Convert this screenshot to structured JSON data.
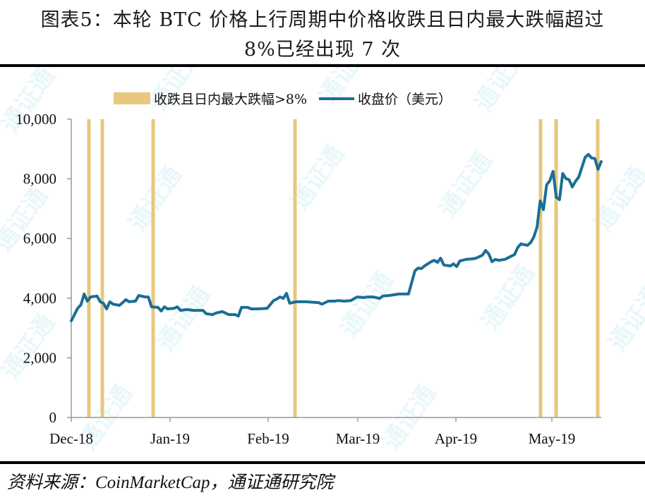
{
  "header": {
    "title_line1": "图表5：本轮 BTC 价格上行周期中价格收跌且日内最大跌幅超过",
    "title_line2": "8%已经出现 7 次"
  },
  "footer": {
    "source": "资料来源：CoinMarketCap，通证通研究院"
  },
  "watermark": {
    "text": "通证通",
    "color": "#d8f1f7"
  },
  "colors": {
    "line": "#1a6e96",
    "bar": "#e8c77e",
    "axis": "#999999"
  },
  "chart_data": {
    "type": "line",
    "title": "本轮 BTC 价格上行周期中价格收跌且日内最大跌幅超过8%已经出现 7 次",
    "xlabel": "",
    "ylabel": "",
    "ylim": [
      0,
      10000
    ],
    "y_ticks": [
      "0",
      "2,000",
      "4,000",
      "6,000",
      "8,000",
      "10,000"
    ],
    "y_tick_values": [
      0,
      2000,
      4000,
      6000,
      8000,
      10000
    ],
    "x_ticks": [
      "Dec-18",
      "Jan-19",
      "Feb-19",
      "Mar-19",
      "Apr-19",
      "May-19"
    ],
    "x_range": [
      "2018-12-15",
      "2019-05-16"
    ],
    "grid": false,
    "legend_position": "top",
    "legend": [
      {
        "label": "收跌且日内最大跌幅>8%",
        "type": "bar",
        "color": "#e8c77e"
      },
      {
        "label": "收盘价（美元）",
        "type": "line",
        "color": "#1a6e96"
      }
    ],
    "series": [
      {
        "name": "收盘价（美元）",
        "points": [
          [
            "2018-12-15",
            3240
          ],
          [
            "2018-12-17",
            3660
          ],
          [
            "2018-12-18",
            3780
          ],
          [
            "2018-12-19",
            4140
          ],
          [
            "2018-12-20",
            3900
          ],
          [
            "2018-12-21",
            4040
          ],
          [
            "2018-12-23",
            4070
          ],
          [
            "2018-12-24",
            3880
          ],
          [
            "2018-12-25",
            3830
          ],
          [
            "2018-12-26",
            3640
          ],
          [
            "2018-12-27",
            3880
          ],
          [
            "2018-12-28",
            3800
          ],
          [
            "2018-12-30",
            3760
          ],
          [
            "2018-12-31",
            3850
          ],
          [
            "2019-01-01",
            3950
          ],
          [
            "2019-01-02",
            3880
          ],
          [
            "2019-01-04",
            3900
          ],
          [
            "2019-01-05",
            4090
          ],
          [
            "2019-01-07",
            4040
          ],
          [
            "2019-01-08",
            4040
          ],
          [
            "2019-01-09",
            3710
          ],
          [
            "2019-01-11",
            3690
          ],
          [
            "2019-01-12",
            3570
          ],
          [
            "2019-01-13",
            3710
          ],
          [
            "2019-01-14",
            3640
          ],
          [
            "2019-01-16",
            3660
          ],
          [
            "2019-01-17",
            3710
          ],
          [
            "2019-01-18",
            3590
          ],
          [
            "2019-01-20",
            3620
          ],
          [
            "2019-01-22",
            3590
          ],
          [
            "2019-01-25",
            3590
          ],
          [
            "2019-01-26",
            3480
          ],
          [
            "2019-01-28",
            3450
          ],
          [
            "2019-01-29",
            3500
          ],
          [
            "2019-01-31",
            3550
          ],
          [
            "2019-02-02",
            3450
          ],
          [
            "2019-02-04",
            3450
          ],
          [
            "2019-02-05",
            3400
          ],
          [
            "2019-02-06",
            3690
          ],
          [
            "2019-02-08",
            3690
          ],
          [
            "2019-02-09",
            3640
          ],
          [
            "2019-02-11",
            3640
          ],
          [
            "2019-02-14",
            3660
          ],
          [
            "2019-02-16",
            3920
          ],
          [
            "2019-02-17",
            3970
          ],
          [
            "2019-02-18",
            4040
          ],
          [
            "2019-02-19",
            3990
          ],
          [
            "2019-02-20",
            4160
          ],
          [
            "2019-02-21",
            3830
          ],
          [
            "2019-02-23",
            3880
          ],
          [
            "2019-02-26",
            3880
          ],
          [
            "2019-03-02",
            3850
          ],
          [
            "2019-03-03",
            3800
          ],
          [
            "2019-03-05",
            3900
          ],
          [
            "2019-03-07",
            3900
          ],
          [
            "2019-03-08",
            3920
          ],
          [
            "2019-03-10",
            3900
          ],
          [
            "2019-03-12",
            3920
          ],
          [
            "2019-03-14",
            4040
          ],
          [
            "2019-03-16",
            4020
          ],
          [
            "2019-03-17",
            4040
          ],
          [
            "2019-03-19",
            4040
          ],
          [
            "2019-03-21",
            3990
          ],
          [
            "2019-03-22",
            4070
          ],
          [
            "2019-03-24",
            4090
          ],
          [
            "2019-03-27",
            4140
          ],
          [
            "2019-03-30",
            4140
          ],
          [
            "2019-04-01",
            4920
          ],
          [
            "2019-04-02",
            5010
          ],
          [
            "2019-04-03",
            4990
          ],
          [
            "2019-04-04",
            5080
          ],
          [
            "2019-04-06",
            5220
          ],
          [
            "2019-04-07",
            5270
          ],
          [
            "2019-04-08",
            5200
          ],
          [
            "2019-04-09",
            5340
          ],
          [
            "2019-04-10",
            5110
          ],
          [
            "2019-04-12",
            5080
          ],
          [
            "2019-04-13",
            5150
          ],
          [
            "2019-04-14",
            5060
          ],
          [
            "2019-04-15",
            5250
          ],
          [
            "2019-04-17",
            5300
          ],
          [
            "2019-04-19",
            5320
          ],
          [
            "2019-04-20",
            5340
          ],
          [
            "2019-04-22",
            5440
          ],
          [
            "2019-04-23",
            5600
          ],
          [
            "2019-04-24",
            5480
          ],
          [
            "2019-04-25",
            5220
          ],
          [
            "2019-04-26",
            5300
          ],
          [
            "2019-04-27",
            5270
          ],
          [
            "2019-04-29",
            5300
          ],
          [
            "2019-05-01",
            5410
          ],
          [
            "2019-05-02",
            5460
          ],
          [
            "2019-05-03",
            5700
          ],
          [
            "2019-05-04",
            5820
          ],
          [
            "2019-05-06",
            5770
          ],
          [
            "2019-05-07",
            5860
          ],
          [
            "2019-05-08",
            6050
          ],
          [
            "2019-05-09",
            6380
          ],
          [
            "2019-05-10",
            7260
          ],
          [
            "2019-05-11",
            6970
          ],
          [
            "2019-05-12",
            7800
          ],
          [
            "2019-05-13",
            7940
          ],
          [
            "2019-05-14",
            8250
          ],
          [
            "2019-05-15",
            7380
          ],
          [
            "2019-05-16",
            7300
          ],
          [
            "2019-05-17",
            8180
          ],
          [
            "2019-05-18",
            8010
          ],
          [
            "2019-05-19",
            7970
          ],
          [
            "2019-05-20",
            7730
          ],
          [
            "2019-05-21",
            7920
          ],
          [
            "2019-05-22",
            8060
          ],
          [
            "2019-05-24",
            8720
          ],
          [
            "2019-05-25",
            8820
          ],
          [
            "2019-05-26",
            8700
          ],
          [
            "2019-05-27",
            8680
          ],
          [
            "2019-05-28",
            8320
          ],
          [
            "2019-05-29",
            8580
          ]
        ]
      },
      {
        "name": "收跌且日内最大跌幅>8%",
        "type": "bar_markers",
        "dates": [
          "2018-12-20",
          "2018-12-24",
          "2019-01-09",
          "2019-02-21",
          "2019-05-10",
          "2019-05-15",
          "2019-05-27"
        ],
        "count": 7
      }
    ]
  }
}
